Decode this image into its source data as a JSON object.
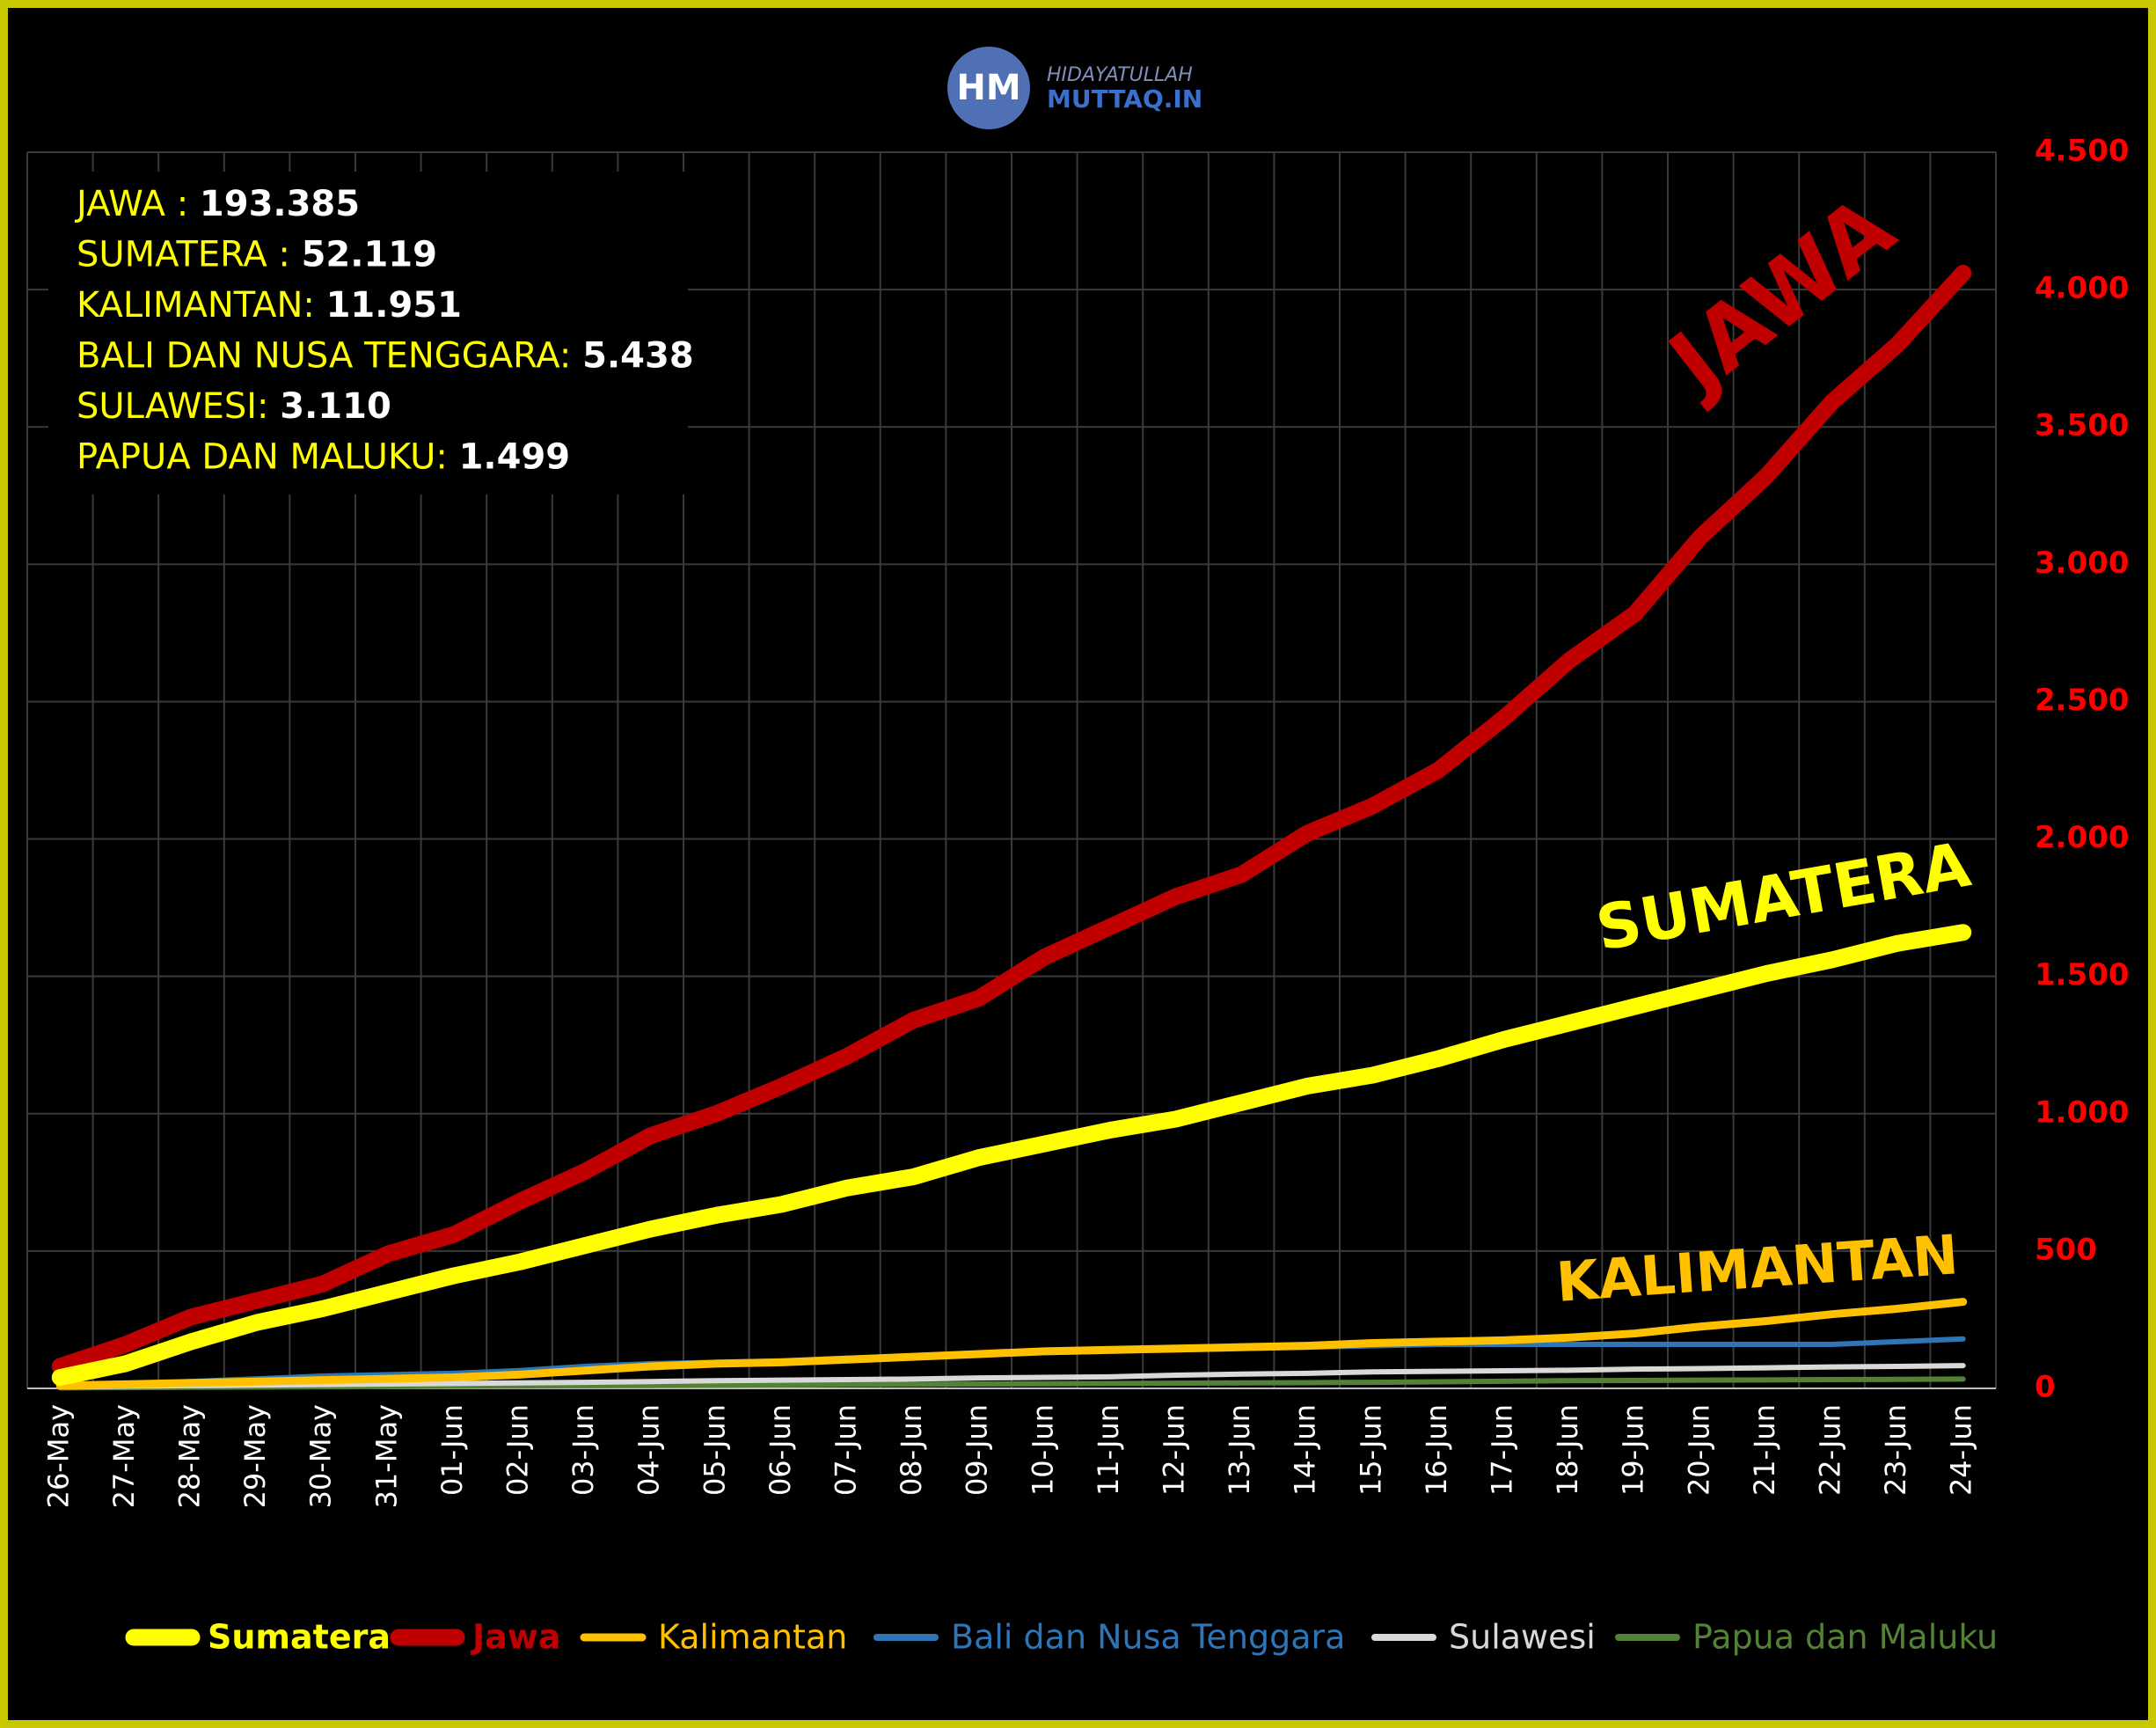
{
  "chart_data": {
    "type": "line",
    "logo": {
      "initials": "HM",
      "line1": "HIDAYATULLAH",
      "line2": "MUTTAQ.IN"
    },
    "categories": [
      "26-May",
      "27-May",
      "28-May",
      "29-May",
      "30-May",
      "31-May",
      "01-Jun",
      "02-Jun",
      "03-Jun",
      "04-Jun",
      "05-Jun",
      "06-Jun",
      "07-Jun",
      "08-Jun",
      "09-Jun",
      "10-Jun",
      "11-Jun",
      "12-Jun",
      "13-Jun",
      "14-Jun",
      "15-Jun",
      "16-Jun",
      "17-Jun",
      "18-Jun",
      "19-Jun",
      "20-Jun",
      "21-Jun",
      "22-Jun",
      "23-Jun",
      "24-Jun"
    ],
    "series": [
      {
        "name": "Sumatera",
        "color": "#ffff00",
        "values": [
          40,
          90,
          170,
          240,
          290,
          350,
          410,
          460,
          520,
          580,
          630,
          670,
          730,
          770,
          840,
          890,
          940,
          980,
          1040,
          1100,
          1140,
          1200,
          1270,
          1330,
          1390,
          1450,
          1510,
          1560,
          1620,
          1660
        ]
      },
      {
        "name": "Jawa",
        "color": "#c00000",
        "values": [
          80,
          160,
          260,
          320,
          380,
          490,
          560,
          680,
          790,
          920,
          1000,
          1100,
          1210,
          1340,
          1420,
          1570,
          1680,
          1790,
          1870,
          2020,
          2120,
          2250,
          2440,
          2650,
          2820,
          3100,
          3320,
          3590,
          3800,
          4060
        ]
      },
      {
        "name": "Kalimantan",
        "color": "#ffc000",
        "values": [
          10,
          15,
          20,
          25,
          30,
          35,
          40,
          50,
          65,
          80,
          90,
          95,
          105,
          115,
          125,
          135,
          140,
          145,
          150,
          155,
          165,
          170,
          175,
          185,
          200,
          225,
          245,
          270,
          290,
          315
        ]
      },
      {
        "name": "Bali dan Nusa Tenggara",
        "color": "#2e75b6",
        "values": [
          5,
          15,
          25,
          35,
          45,
          50,
          55,
          65,
          80,
          90,
          95,
          100,
          110,
          115,
          125,
          130,
          135,
          140,
          145,
          150,
          155,
          160,
          160,
          160,
          160,
          160,
          160,
          160,
          170,
          180
        ]
      },
      {
        "name": "Sulawesi",
        "color": "#d9d9d9",
        "values": [
          5,
          8,
          10,
          12,
          14,
          16,
          18,
          20,
          22,
          25,
          28,
          30,
          32,
          34,
          38,
          40,
          42,
          48,
          52,
          55,
          60,
          62,
          64,
          66,
          70,
          72,
          75,
          78,
          80,
          83
        ]
      },
      {
        "name": "Papua dan Maluku",
        "color": "#548235",
        "values": [
          2,
          3,
          4,
          5,
          6,
          7,
          8,
          9,
          10,
          11,
          12,
          13,
          14,
          15,
          16,
          17,
          18,
          19,
          20,
          21,
          22,
          24,
          26,
          28,
          29,
          30,
          31,
          32,
          33,
          34
        ]
      }
    ],
    "ylim": [
      0,
      4500
    ],
    "yticks": [
      0,
      500,
      {
        "value": 1000,
        "label": "1.000"
      },
      {
        "value": 1500,
        "label": "1.500"
      },
      {
        "value": 2000,
        "label": "2.000"
      },
      {
        "value": 2500,
        "label": "2.500"
      },
      {
        "value": 3000,
        "label": "3.000"
      },
      {
        "value": 3500,
        "label": "3.500"
      },
      {
        "value": 4000,
        "label": "4.000"
      },
      {
        "value": 4500,
        "label": "4.500"
      }
    ],
    "grid": true,
    "summary": [
      {
        "label": "JAWA : ",
        "value": "193.385"
      },
      {
        "label": "SUMATERA : ",
        "value": "52.119"
      },
      {
        "label": "KALIMANTAN: ",
        "value": "11.951"
      },
      {
        "label": "BALI DAN NUSA TENGGARA: ",
        "value": "5.438"
      },
      {
        "label": "SULAWESI: ",
        "value": "3.110"
      },
      {
        "label": "PAPUA DAN MALUKU: ",
        "value": "1.499"
      }
    ],
    "annotations": [
      "JAWA",
      "SUMATERA",
      "KALIMANTAN"
    ]
  }
}
